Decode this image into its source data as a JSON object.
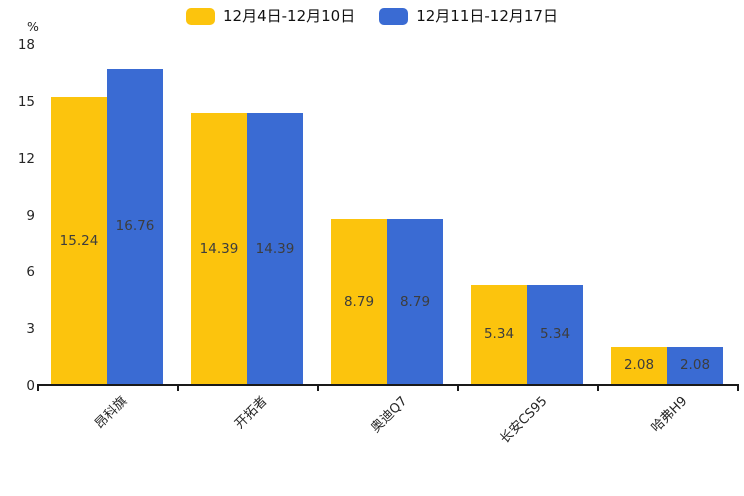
{
  "chart_data": {
    "type": "bar",
    "title": "",
    "xlabel": "",
    "ylabel": "%",
    "categories": [
      "昂科旗",
      "开拓者",
      "奥迪Q7",
      "长安CS95",
      "哈弗H9"
    ],
    "series": [
      {
        "name": "12月4日-12月10日",
        "color": "#FCC40D",
        "values": [
          15.24,
          14.39,
          8.79,
          5.34,
          2.08
        ]
      },
      {
        "name": "12月11日-12月17日",
        "color": "#3A6BD3",
        "values": [
          16.76,
          14.39,
          8.79,
          5.34,
          2.08
        ]
      }
    ],
    "yticks": [
      0,
      3,
      6,
      9,
      12,
      15,
      18
    ],
    "ylim": [
      0,
      18
    ],
    "legend_position": "top-center",
    "grid": false,
    "value_labels": "centered-inside-bars",
    "bar_value_format": "2-decimals",
    "axis_line_color": "#1a1a1a",
    "tick_label_color": "#262626",
    "value_label_color": "#3d3d3d",
    "x_label_rotation_deg": 45
  }
}
